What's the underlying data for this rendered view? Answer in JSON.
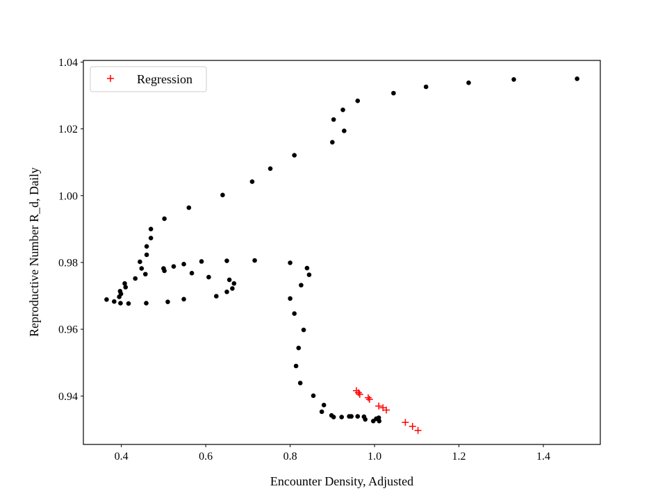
{
  "chart_data": {
    "type": "scatter",
    "title": "",
    "xlabel": "Encounter Density, Adjusted",
    "ylabel": "Reproductive Number R_d, Daily",
    "xlim": [
      0.31,
      1.535
    ],
    "ylim": [
      0.9255,
      1.0405
    ],
    "xticks": [
      0.4,
      0.6,
      0.8,
      1.0,
      1.2,
      1.4
    ],
    "xtick_labels": [
      "0.4",
      "0.6",
      "0.8",
      "1.0",
      "1.2",
      "1.4"
    ],
    "yticks": [
      0.94,
      0.96,
      0.98,
      1.0,
      1.02,
      1.04
    ],
    "ytick_labels": [
      "0.94",
      "0.96",
      "0.98",
      "1.00",
      "1.02",
      "1.04"
    ],
    "grid": false,
    "legend": {
      "position": "top-left",
      "entries": [
        "Regression"
      ]
    },
    "series": [
      {
        "name": "Data",
        "marker": "dot",
        "color": "#000000",
        "in_legend": false,
        "points": [
          [
            1.48,
            1.035
          ],
          [
            1.33,
            1.0348
          ],
          [
            1.223,
            1.0338
          ],
          [
            1.122,
            1.0326
          ],
          [
            1.045,
            1.0307
          ],
          [
            0.96,
            1.0284
          ],
          [
            0.925,
            1.0257
          ],
          [
            0.903,
            1.0228
          ],
          [
            0.928,
            1.0194
          ],
          [
            0.9,
            1.016
          ],
          [
            0.81,
            1.0121
          ],
          [
            0.753,
            1.0081
          ],
          [
            0.71,
            1.0042
          ],
          [
            0.64,
            1.0002
          ],
          [
            0.56,
            0.9964
          ],
          [
            0.502,
            0.9931
          ],
          [
            0.47,
            0.99
          ],
          [
            0.47,
            0.9873
          ],
          [
            0.46,
            0.9848
          ],
          [
            0.46,
            0.9823
          ],
          [
            0.444,
            0.9802
          ],
          [
            0.448,
            0.9782
          ],
          [
            0.457,
            0.9765
          ],
          [
            0.5,
            0.9782
          ],
          [
            0.502,
            0.9775
          ],
          [
            0.524,
            0.9788
          ],
          [
            0.548,
            0.9795
          ],
          [
            0.567,
            0.9768
          ],
          [
            0.59,
            0.9803
          ],
          [
            0.607,
            0.9756
          ],
          [
            0.65,
            0.9805
          ],
          [
            0.716,
            0.9806
          ],
          [
            0.433,
            0.9752
          ],
          [
            0.408,
            0.9737
          ],
          [
            0.41,
            0.9726
          ],
          [
            0.397,
            0.9714
          ],
          [
            0.399,
            0.9706
          ],
          [
            0.395,
            0.9697
          ],
          [
            0.365,
            0.9689
          ],
          [
            0.383,
            0.9683
          ],
          [
            0.398,
            0.9678
          ],
          [
            0.417,
            0.9677
          ],
          [
            0.459,
            0.9678
          ],
          [
            0.51,
            0.9682
          ],
          [
            0.548,
            0.969
          ],
          [
            0.625,
            0.9699
          ],
          [
            0.65,
            0.9712
          ],
          [
            0.663,
            0.9722
          ],
          [
            0.667,
            0.9737
          ],
          [
            0.656,
            0.9748
          ],
          [
            0.8,
            0.9799
          ],
          [
            0.84,
            0.9783
          ],
          [
            0.845,
            0.9763
          ],
          [
            0.826,
            0.9732
          ],
          [
            0.8,
            0.9692
          ],
          [
            0.81,
            0.9647
          ],
          [
            0.832,
            0.9598
          ],
          [
            0.82,
            0.9544
          ],
          [
            0.814,
            0.949
          ],
          [
            0.824,
            0.9439
          ],
          [
            0.855,
            0.9401
          ],
          [
            0.88,
            0.9373
          ],
          [
            0.875,
            0.9353
          ],
          [
            0.898,
            0.9342
          ],
          [
            0.903,
            0.9337
          ],
          [
            0.922,
            0.9337
          ],
          [
            0.94,
            0.9339
          ],
          [
            0.945,
            0.9339
          ],
          [
            0.96,
            0.9339
          ],
          [
            0.975,
            0.9338
          ],
          [
            0.978,
            0.933
          ],
          [
            0.997,
            0.9325
          ],
          [
            1.004,
            0.9332
          ],
          [
            1.01,
            0.9335
          ],
          [
            1.011,
            0.9325
          ]
        ]
      },
      {
        "name": "Regression",
        "marker": "plus",
        "color": "#ff0000",
        "in_legend": true,
        "points": [
          [
            0.957,
            0.9416
          ],
          [
            0.962,
            0.941
          ],
          [
            0.965,
            0.9405
          ],
          [
            0.985,
            0.9395
          ],
          [
            0.988,
            0.939
          ],
          [
            1.01,
            0.937
          ],
          [
            1.02,
            0.9365
          ],
          [
            1.028,
            0.9358
          ],
          [
            1.073,
            0.9321
          ],
          [
            1.09,
            0.9309
          ],
          [
            1.103,
            0.9297
          ]
        ]
      }
    ]
  }
}
